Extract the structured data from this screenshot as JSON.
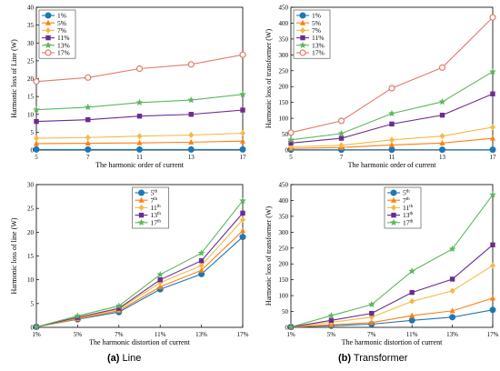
{
  "captions": [
    {
      "tag": "(a)",
      "text": "Line"
    },
    {
      "tag": "(b)",
      "text": "Transformer"
    }
  ],
  "chart_data": [
    {
      "type": "line",
      "xlabel": "The harmonic order  of current",
      "ylabel": "Harmonic loss of Line (W)",
      "x": [
        "5",
        "7",
        "11",
        "13",
        "17"
      ],
      "ylim": [
        0,
        40
      ],
      "yticks": [
        0,
        5,
        10,
        15,
        20,
        25,
        30,
        35,
        40
      ],
      "legend": "top-left",
      "series": [
        {
          "name": "1%",
          "color": "#1f77b4",
          "marker": "circle",
          "values": [
            0.15,
            0.15,
            0.15,
            0.15,
            0.15
          ]
        },
        {
          "name": "5%",
          "color": "#ff7f0e",
          "marker": "triangle",
          "values": [
            1.8,
            1.9,
            2.0,
            2.2,
            2.5
          ]
        },
        {
          "name": "7%",
          "color": "#f5b942",
          "marker": "diamond",
          "values": [
            3.3,
            3.5,
            3.9,
            4.2,
            4.7
          ]
        },
        {
          "name": "11%",
          "color": "#6a2c91",
          "marker": "square",
          "values": [
            8.0,
            8.5,
            9.5,
            10.0,
            11.2
          ]
        },
        {
          "name": "13%",
          "color": "#5cb85c",
          "marker": "star",
          "values": [
            11.3,
            12.0,
            13.3,
            14.0,
            15.6
          ]
        },
        {
          "name": "17%",
          "color": "#e07b6a",
          "marker": "circle-open",
          "values": [
            19.2,
            20.3,
            22.8,
            24.0,
            26.7
          ]
        }
      ]
    },
    {
      "type": "line",
      "xlabel": "The harmonic order  of current",
      "ylabel": "Harmonic loss of transformer (W)",
      "x": [
        "5",
        "7",
        "11",
        "13",
        "17"
      ],
      "ylim": [
        0,
        450
      ],
      "yticks": [
        0,
        50,
        100,
        150,
        200,
        250,
        300,
        350,
        400,
        450
      ],
      "legend": "top-left",
      "series": [
        {
          "name": "1%",
          "color": "#1f77b4",
          "marker": "circle",
          "values": [
            1,
            1,
            1,
            1,
            1
          ]
        },
        {
          "name": "5%",
          "color": "#ff7f0e",
          "marker": "triangle",
          "values": [
            5,
            8,
            16,
            22,
            37
          ]
        },
        {
          "name": "7%",
          "color": "#f5b942",
          "marker": "diamond",
          "values": [
            10,
            15,
            32,
            44,
            72
          ]
        },
        {
          "name": "11%",
          "color": "#6a2c91",
          "marker": "square",
          "values": [
            22,
            37,
            82,
            110,
            177
          ]
        },
        {
          "name": "13%",
          "color": "#5cb85c",
          "marker": "star",
          "values": [
            32,
            52,
            115,
            152,
            247
          ]
        },
        {
          "name": "17%",
          "color": "#e07b6a",
          "marker": "circle-open",
          "values": [
            55,
            92,
            195,
            260,
            418
          ]
        }
      ]
    },
    {
      "type": "line",
      "xlabel": "The harmonic distortion of current",
      "ylabel": "Harmonic loss of line (W)",
      "x": [
        "1%",
        "5%",
        "7%",
        "11%",
        "13%",
        "17%"
      ],
      "ylim": [
        0,
        30
      ],
      "yticks": [
        0,
        5,
        10,
        15,
        20,
        25,
        30
      ],
      "legend": "top-center",
      "series": [
        {
          "name": "5",
          "sup": "th",
          "color": "#1f77b4",
          "marker": "circle",
          "values": [
            0.1,
            1.7,
            3.2,
            8.0,
            11.2,
            19.0
          ]
        },
        {
          "name": "7",
          "sup": "th",
          "color": "#ff7f0e",
          "marker": "triangle",
          "values": [
            0.1,
            1.8,
            3.5,
            8.5,
            12.0,
            20.3
          ]
        },
        {
          "name": "11",
          "sup": "th",
          "color": "#f5b942",
          "marker": "diamond",
          "values": [
            0.1,
            2.0,
            3.8,
            9.4,
            13.0,
            22.6
          ]
        },
        {
          "name": "13",
          "sup": "th",
          "color": "#6a2c91",
          "marker": "square",
          "values": [
            0.1,
            2.1,
            4.0,
            10.0,
            14.0,
            24.0
          ]
        },
        {
          "name": "17",
          "sup": "th",
          "color": "#5cb85c",
          "marker": "star",
          "values": [
            0.1,
            2.4,
            4.5,
            11.1,
            15.6,
            26.6
          ]
        }
      ]
    },
    {
      "type": "line",
      "xlabel": "The harmonic distortion of current",
      "ylabel": "Harmonic loss of transformer (W)",
      "x": [
        "1%",
        "5%",
        "7%",
        "11%",
        "13%",
        "17%"
      ],
      "ylim": [
        0,
        450
      ],
      "yticks": [
        0,
        50,
        100,
        150,
        200,
        250,
        300,
        350,
        400,
        450
      ],
      "legend": "top-center",
      "series": [
        {
          "name": "5",
          "sup": "th",
          "color": "#1f77b4",
          "marker": "circle",
          "values": [
            1,
            5,
            10,
            22,
            32,
            55
          ]
        },
        {
          "name": "7",
          "sup": "th",
          "color": "#ff7f0e",
          "marker": "triangle",
          "values": [
            1,
            8,
            15,
            37,
            52,
            92
          ]
        },
        {
          "name": "11",
          "sup": "th",
          "color": "#f5b942",
          "marker": "diamond",
          "values": [
            1,
            16,
            32,
            82,
            115,
            195
          ]
        },
        {
          "name": "13",
          "sup": "th",
          "color": "#6a2c91",
          "marker": "square",
          "values": [
            1,
            22,
            44,
            110,
            152,
            260
          ]
        },
        {
          "name": "17",
          "sup": "th",
          "color": "#5cb85c",
          "marker": "star",
          "values": [
            1,
            37,
            72,
            177,
            247,
            418
          ]
        }
      ]
    }
  ]
}
